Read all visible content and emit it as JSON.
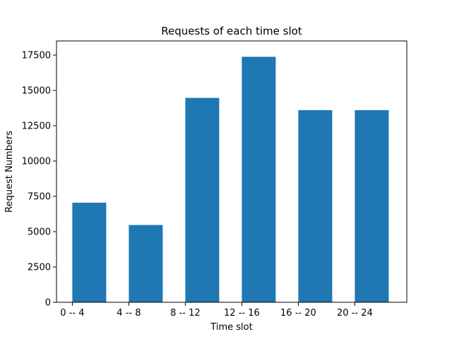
{
  "chart_data": {
    "type": "bar",
    "title": "Requests of each time slot",
    "xlabel": "Time slot",
    "ylabel": "Request Numbers",
    "categories": [
      "0 -- 4",
      "4 -- 8",
      "8 -- 12",
      "12 -- 16",
      "16 -- 20",
      "20 -- 24"
    ],
    "values": [
      7050,
      5470,
      14470,
      17380,
      13600,
      13600
    ],
    "ylim": [
      0,
      18500
    ],
    "yticks": [
      0,
      2500,
      5000,
      7500,
      10000,
      12500,
      15000,
      17500
    ],
    "bar_color": "#1f77b4",
    "grid": false,
    "legend": "none"
  }
}
